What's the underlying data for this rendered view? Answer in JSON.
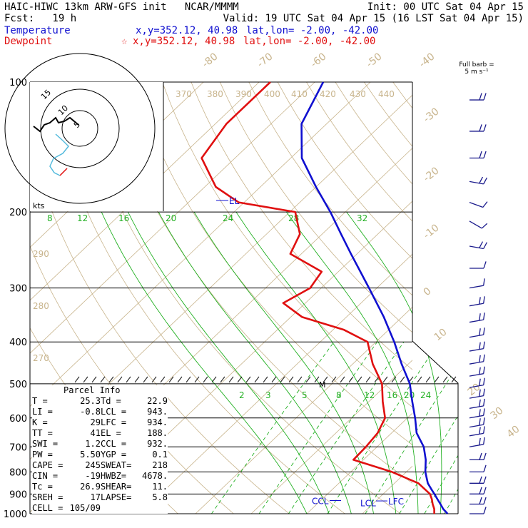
{
  "header": {
    "line1_left": "HAIC-HIWC 13km ARW-GFS init   NCAR/MMMM",
    "line1_right": "Init: 00 UTC Sat 04 Apr 15",
    "line2_left": "Fcst:   19 h",
    "line2_right": "Valid: 19 UTC Sat 04 Apr 15 (16 LST Sat 04 Apr 15)",
    "temp_label": "Temperature",
    "temp_xy": "x,y=352.12, 40.98",
    "temp_latlon": "lat,lon= -2.00, -42.00",
    "dew_label": "Dewpoint",
    "dew_xy": "x,y=352.12, 40.98",
    "dew_latlon": "lat,lon= -2.00, -42.00",
    "dew_marker": "☆"
  },
  "colors": {
    "temperature": "#1010d0",
    "dewpoint": "#e01010",
    "dry_adiabat": "#c8b48c",
    "moist_adiabat": "#22b022",
    "isobar": "#000000",
    "hodo_cyan": "#55bbdd",
    "barb": "#1a1a8c"
  },
  "barb_legend": {
    "line1": "Full barb =",
    "line2": "5 m s⁻¹"
  },
  "parcel": {
    "title": "Parcel Info",
    "rows": [
      [
        "T  =",
        "25.3",
        "Td =",
        "22.9"
      ],
      [
        "LI =",
        "-0.8",
        "LCL =",
        "943."
      ],
      [
        "K  =",
        "29",
        "LFC =",
        "934."
      ],
      [
        "TT =",
        "41",
        "EL =",
        "188."
      ],
      [
        "SWI =",
        "1.2",
        "CCL =",
        "932."
      ],
      [
        "PW =",
        "5.50",
        "YGP =",
        "0.1"
      ],
      [
        "CAPE =",
        "245",
        "SWEAT=",
        "218"
      ],
      [
        "CIN =",
        "-19",
        "HWBZ=",
        "4678."
      ],
      [
        "Tc =",
        "26.9",
        "SHEAR=",
        "11."
      ],
      [
        "SREH =",
        "17",
        "LAPSE=",
        "5.8"
      ],
      [
        "CELL =",
        "105/09",
        "",
        ""
      ]
    ]
  },
  "hodograph": {
    "unit": "kts",
    "ring_labels": [
      "5",
      "10",
      "15"
    ]
  },
  "chart_data": {
    "type": "line",
    "title": "",
    "ylabel": "",
    "xlabel": "",
    "y_scale": "log-pressure",
    "y_range": [
      1000,
      100
    ],
    "pressure_ticks": [
      100,
      200,
      300,
      400,
      500,
      600,
      700,
      800,
      900,
      1000
    ],
    "isotherm_labels": [
      "-80",
      "-70",
      "-60",
      "-50",
      "-40",
      "-30",
      "-20",
      "-10",
      "0",
      "10",
      "20",
      "30",
      "40"
    ],
    "theta_labels": [
      "370",
      "380",
      "390",
      "400",
      "410",
      "420",
      "430",
      "440",
      "290",
      "280",
      "270"
    ],
    "mixing_ratio_labels_upper": [
      "8",
      "12",
      "16",
      "20",
      "24",
      "28",
      "32"
    ],
    "mixing_ratio_labels_lower": [
      "2",
      "3",
      "5",
      "8",
      "12",
      "16",
      "20",
      "24"
    ],
    "annotations": [
      "EL",
      "CCL",
      "LCL",
      "LFC",
      "M"
    ],
    "series": [
      {
        "name": "Temperature",
        "p": [
          1000,
          975,
          950,
          925,
          900,
          875,
          850,
          800,
          750,
          700,
          650,
          600,
          550,
          500,
          450,
          400,
          350,
          300,
          250,
          225,
          200,
          175,
          150,
          125,
          100
        ],
        "t": [
          25.3,
          23.6,
          22.2,
          20.7,
          19.2,
          17.6,
          16.0,
          13.4,
          11.2,
          8.4,
          4.5,
          1.4,
          -2.2,
          -6.0,
          -11.2,
          -16.7,
          -23.3,
          -31.4,
          -41.1,
          -46.6,
          -52.7,
          -60.0,
          -68.0,
          -74.5,
          -78.5
        ]
      },
      {
        "name": "Dewpoint",
        "p": [
          1000,
          975,
          950,
          925,
          900,
          850,
          800,
          750,
          700,
          650,
          600,
          550,
          500,
          450,
          400,
          375,
          350,
          325,
          300,
          275,
          250,
          225,
          200,
          190,
          175,
          150,
          125,
          100
        ],
        "t": [
          22.9,
          22.0,
          20.8,
          19.7,
          18.4,
          14.3,
          7.4,
          -1.8,
          -2.0,
          -2.5,
          -4.0,
          -7.5,
          -11.0,
          -16.4,
          -21.5,
          -28.0,
          -38.0,
          -44.0,
          -42.0,
          -43.0,
          -52.0,
          -54.0,
          -59.0,
          -71.0,
          -78.0,
          -86.0,
          -88.0,
          -88.0
        ]
      }
    ],
    "wind_barbs": {
      "p": [
        110,
        130,
        150,
        170,
        190,
        210,
        240,
        270,
        300,
        330,
        360,
        390,
        420,
        450,
        480,
        510,
        540,
        570,
        600,
        630,
        660,
        700,
        750,
        800,
        850,
        900,
        950,
        1000
      ],
      "speed_ms": [
        10,
        10,
        10,
        10,
        5,
        5,
        10,
        5,
        5,
        10,
        10,
        10,
        10,
        10,
        10,
        10,
        10,
        10,
        10,
        10,
        10,
        10,
        10,
        5,
        10,
        10,
        10,
        5
      ],
      "dir_deg": [
        90,
        90,
        90,
        100,
        110,
        120,
        100,
        90,
        80,
        80,
        80,
        80,
        80,
        80,
        80,
        80,
        80,
        80,
        80,
        80,
        80,
        80,
        90,
        90,
        90,
        90,
        90,
        90
      ]
    }
  }
}
